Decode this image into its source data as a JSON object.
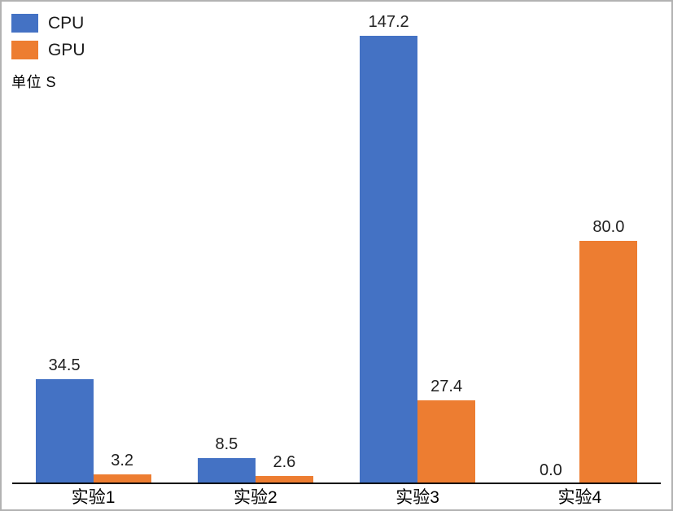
{
  "chart": {
    "unit_label": "单位 S",
    "axis_color": "#000000",
    "frame_border_color": "#b2b2b2",
    "label_text_color": "#1f1f1f"
  },
  "chart_data": {
    "type": "bar",
    "title": "",
    "xlabel": "",
    "ylabel": "单位 S",
    "categories": [
      "实验1",
      "实验2",
      "实验3",
      "实验4"
    ],
    "series": [
      {
        "name": "CPU",
        "color": "#4472C4",
        "values": [
          34.5,
          8.5,
          147.2,
          0.0
        ]
      },
      {
        "name": "GPU",
        "color": "#ED7D31",
        "values": [
          3.2,
          2.6,
          27.4,
          80.0
        ]
      }
    ],
    "data_labels": {
      "CPU": [
        "34.5",
        "8.5",
        "147.2",
        "0.0"
      ],
      "GPU": [
        "3.2",
        "2.6",
        "27.4",
        "80.0"
      ]
    },
    "ylim": [
      0,
      155.7
    ],
    "grid": false,
    "y_axis_visible": false,
    "legend_position": "top-left"
  }
}
